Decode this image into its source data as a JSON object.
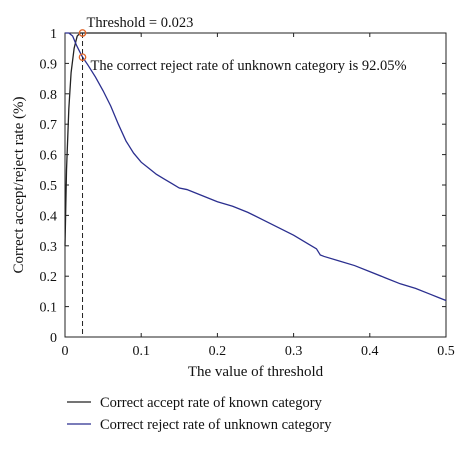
{
  "chart_data": {
    "type": "line",
    "title": "",
    "xlabel": "The value of threshold",
    "ylabel": "Correct accept/reject rate (%)",
    "xlim": [
      0,
      0.5
    ],
    "ylim": [
      0,
      1
    ],
    "xticks": [
      0,
      0.1,
      0.2,
      0.3,
      0.4,
      0.5
    ],
    "xtick_labels": [
      "0",
      "0.1",
      "0.2",
      "0.3",
      "0.4",
      "0.5"
    ],
    "yticks": [
      0,
      0.1,
      0.2,
      0.3,
      0.4,
      0.5,
      0.6,
      0.7,
      0.8,
      0.9,
      1
    ],
    "ytick_labels": [
      "0",
      "0.1",
      "0.2",
      "0.3",
      "0.4",
      "0.5",
      "0.6",
      "0.7",
      "0.8",
      "0.9",
      "1"
    ],
    "grid": false,
    "legend_position": "below",
    "series": [
      {
        "name": "Correct accept rate of known category",
        "color": "#222222",
        "x": [
          0,
          0.002,
          0.005,
          0.008,
          0.012,
          0.016,
          0.02,
          0.023,
          0.03,
          0.04,
          0.06,
          0.08,
          0.1
        ],
        "y": [
          0.3,
          0.55,
          0.75,
          0.87,
          0.95,
          0.99,
          1.0,
          1.0,
          1.0,
          1.0,
          1.0,
          1.0,
          1.0
        ]
      },
      {
        "name": "Correct reject rate of unknown category",
        "color": "#2b2f8f",
        "x": [
          0,
          0.005,
          0.01,
          0.015,
          0.02,
          0.023,
          0.03,
          0.04,
          0.05,
          0.06,
          0.07,
          0.08,
          0.09,
          0.1,
          0.11,
          0.12,
          0.13,
          0.14,
          0.15,
          0.16,
          0.18,
          0.2,
          0.22,
          0.24,
          0.26,
          0.28,
          0.3,
          0.32,
          0.33,
          0.335,
          0.34,
          0.36,
          0.38,
          0.4,
          0.42,
          0.44,
          0.46,
          0.48,
          0.49,
          0.5
        ],
        "y": [
          1.0,
          1.0,
          0.99,
          0.96,
          0.935,
          0.9205,
          0.895,
          0.855,
          0.81,
          0.76,
          0.7,
          0.645,
          0.605,
          0.575,
          0.555,
          0.535,
          0.52,
          0.505,
          0.49,
          0.485,
          0.465,
          0.445,
          0.43,
          0.41,
          0.385,
          0.36,
          0.335,
          0.305,
          0.29,
          0.27,
          0.265,
          0.25,
          0.235,
          0.215,
          0.195,
          0.175,
          0.16,
          0.14,
          0.13,
          0.12
        ]
      }
    ],
    "threshold": {
      "x": 0.023,
      "accept_y": 1.0,
      "reject_y": 0.9205
    },
    "annotations": [
      {
        "text": "Threshold = 0.023"
      },
      {
        "text": "The correct reject rate of unknown category is 92.05%"
      }
    ]
  }
}
